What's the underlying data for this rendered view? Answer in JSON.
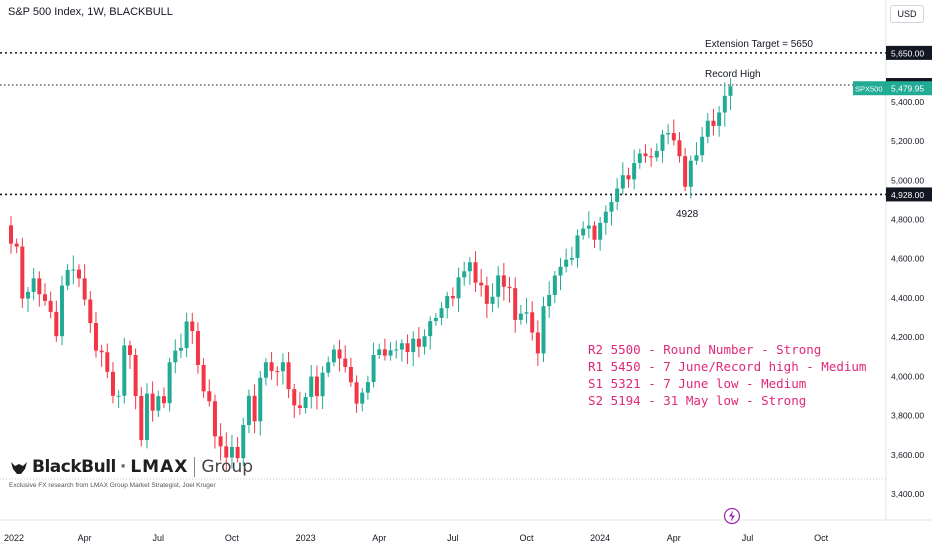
{
  "header": {
    "title": "S&P 500 Index, 1W, BLACKBULL",
    "currency": "USD"
  },
  "annotations": {
    "extension_target": "Extension Target = 5650",
    "record_high": "Record High",
    "low_label": "4928"
  },
  "levels_note": [
    "R2 5500 - Round Number - Strong",
    "R1 5450 - 7 June/Record high - Medium",
    "S1 5321 - 7 June low - Medium",
    "S2 5194 - 31 May low - Strong"
  ],
  "logo": {
    "brand1": "BlackBull",
    "brand2": "LMAX",
    "brand3": "Group",
    "tagline": "Exclusive FX research from LMAX Group Market Strategist, Joel Kruger"
  },
  "colors": {
    "up": "#22ab94",
    "down": "#f23645",
    "accent": "#e0287a",
    "text": "#131722"
  },
  "chart_data": {
    "type": "candlestick",
    "title": "S&P 500 Index, 1W, BLACKBULL",
    "ylim": [
      3370,
      5680
    ],
    "y_ticks": [
      3400,
      3600,
      3800,
      4000,
      4200,
      4400,
      4600,
      4800,
      5000,
      5200,
      5400
    ],
    "y_tick_labels": [
      "3,400.00",
      "3,600.00",
      "3,800.00",
      "4,000.00",
      "4,200.00",
      "4,400.00",
      "4,600.00",
      "4,800.00",
      "5,000.00",
      "5,200.00",
      "5,400.00"
    ],
    "x_labels": [
      {
        "label": "2022",
        "index": 0
      },
      {
        "label": "Apr",
        "index": 13
      },
      {
        "label": "Jul",
        "index": 26
      },
      {
        "label": "Oct",
        "index": 39
      },
      {
        "label": "2023",
        "index": 52
      },
      {
        "label": "Apr",
        "index": 65
      },
      {
        "label": "Jul",
        "index": 78
      },
      {
        "label": "Oct",
        "index": 91
      },
      {
        "label": "2024",
        "index": 104
      },
      {
        "label": "Apr",
        "index": 117
      },
      {
        "label": "Jul",
        "index": 130
      },
      {
        "label": "Oct",
        "index": 143
      }
    ],
    "horizontal_levels": [
      {
        "value": 5650,
        "label": "5,650.00",
        "style": "dotted-bold"
      },
      {
        "value": 5486.04,
        "label": "5,486.04",
        "style": "dotted"
      },
      {
        "value": 4928,
        "label": "4,928.00",
        "style": "dotted-bold"
      }
    ],
    "last_price": {
      "value": 5479.95,
      "label": "5,479.95",
      "symbol": "SPX500"
    },
    "closes": [
      4677,
      4662,
      4397,
      4431,
      4500,
      4419,
      4385,
      4329,
      4205,
      4463,
      4543,
      4545,
      4500,
      4392,
      4272,
      4131,
      4123,
      4023,
      3901,
      3901,
      4158,
      4109,
      3900,
      3675,
      3912,
      3825,
      3899,
      3863,
      4072,
      4131,
      4145,
      4280,
      4231,
      4058,
      3924,
      3873,
      3694,
      3643,
      3586,
      3640,
      3583,
      3752,
      3901,
      3771,
      3993,
      4072,
      4027,
      4026,
      4072,
      3935,
      3852,
      3839,
      3895,
      3999,
      3899,
      4019,
      4072,
      4137,
      4091,
      4048,
      3970,
      3861,
      3917,
      3971,
      4109,
      4138,
      4106,
      4133,
      4137,
      4169,
      4124,
      4192,
      4151,
      4205,
      4282,
      4298,
      4348,
      4410,
      4398,
      4505,
      4536,
      4582,
      4478,
      4464,
      4370,
      4406,
      4515,
      4457,
      4450,
      4288,
      4320,
      4327,
      4224,
      4117,
      4358,
      4415,
      4514,
      4559,
      4595,
      4604,
      4719,
      4754,
      4769,
      4697,
      4783,
      4840,
      4890,
      4958,
      5026,
      5005,
      5088,
      5137,
      5123,
      5117,
      5150,
      5234,
      5241,
      5204,
      5123,
      4967,
      5100,
      5128,
      5222,
      5304,
      5277,
      5346,
      5431,
      5480
    ]
  }
}
